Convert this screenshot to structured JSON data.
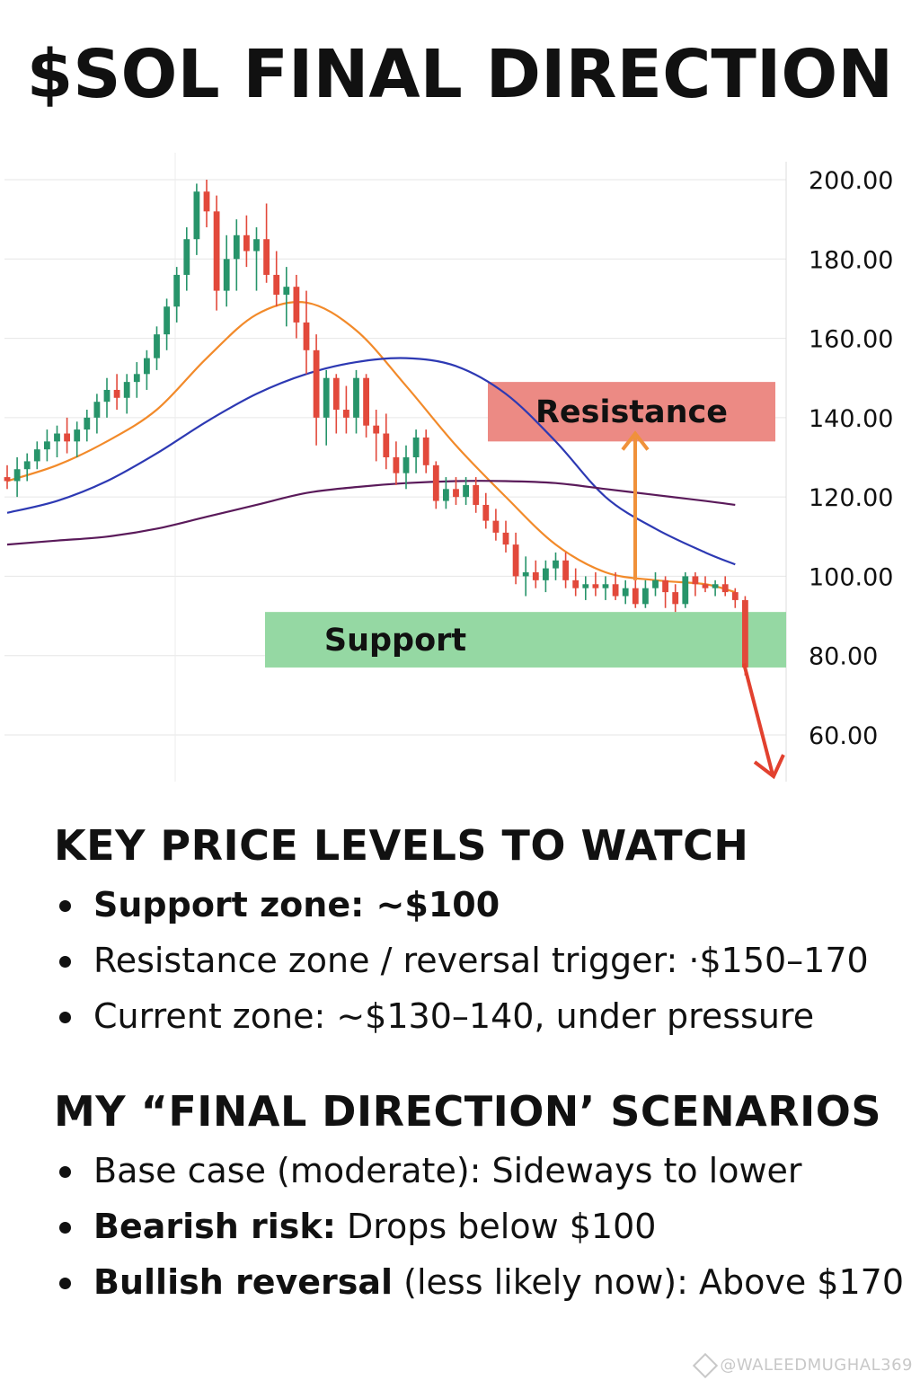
{
  "title": "$SOL FINAL DIRECTION",
  "chart_data": {
    "type": "candlestick",
    "yticks": [
      "200.00",
      "180.00",
      "160.00",
      "140.00",
      "120.00",
      "100.00",
      "80.00",
      "60.00"
    ],
    "ylim": [
      48,
      202
    ],
    "grid": true,
    "colors": {
      "up": "#27946a",
      "down": "#e2493b",
      "ma_fast": "#f28a2a",
      "ma_mid": "#2d39b3",
      "ma_slow": "#5a1a5a"
    },
    "candles": [
      [
        125,
        128,
        122,
        124
      ],
      [
        124,
        130,
        120,
        127
      ],
      [
        127,
        131,
        124,
        129
      ],
      [
        129,
        134,
        127,
        132
      ],
      [
        132,
        137,
        129,
        134
      ],
      [
        134,
        138,
        130,
        136
      ],
      [
        136,
        140,
        131,
        134
      ],
      [
        134,
        139,
        130,
        137
      ],
      [
        137,
        142,
        134,
        140
      ],
      [
        140,
        146,
        136,
        144
      ],
      [
        144,
        150,
        140,
        147
      ],
      [
        147,
        151,
        142,
        145
      ],
      [
        145,
        151,
        141,
        149
      ],
      [
        149,
        154,
        145,
        151
      ],
      [
        151,
        157,
        147,
        155
      ],
      [
        155,
        163,
        152,
        161
      ],
      [
        161,
        170,
        157,
        168
      ],
      [
        168,
        178,
        164,
        176
      ],
      [
        176,
        188,
        172,
        185
      ],
      [
        185,
        199,
        181,
        197
      ],
      [
        197,
        200,
        188,
        192
      ],
      [
        192,
        196,
        167,
        172
      ],
      [
        172,
        186,
        168,
        180
      ],
      [
        180,
        190,
        172,
        186
      ],
      [
        186,
        191,
        178,
        182
      ],
      [
        182,
        188,
        172,
        185
      ],
      [
        185,
        194,
        174,
        176
      ],
      [
        176,
        182,
        168,
        171
      ],
      [
        171,
        178,
        163,
        173
      ],
      [
        173,
        176,
        160,
        164
      ],
      [
        164,
        172,
        151,
        157
      ],
      [
        157,
        161,
        133,
        140
      ],
      [
        140,
        152,
        133,
        150
      ],
      [
        150,
        151,
        136,
        142
      ],
      [
        142,
        148,
        136,
        140
      ],
      [
        140,
        152,
        136,
        150
      ],
      [
        150,
        151,
        135,
        138
      ],
      [
        138,
        142,
        129,
        136
      ],
      [
        136,
        141,
        127,
        130
      ],
      [
        130,
        134,
        123,
        126
      ],
      [
        126,
        133,
        122,
        130
      ],
      [
        130,
        137,
        126,
        135
      ],
      [
        135,
        137,
        126,
        128
      ],
      [
        128,
        129,
        117,
        119
      ],
      [
        119,
        125,
        117,
        122
      ],
      [
        122,
        125,
        118,
        120
      ],
      [
        120,
        125,
        118,
        123
      ],
      [
        123,
        125,
        116,
        118
      ],
      [
        118,
        121,
        112,
        114
      ],
      [
        114,
        117,
        109,
        111
      ],
      [
        111,
        114,
        106,
        108
      ],
      [
        108,
        111,
        98,
        100
      ],
      [
        100,
        105,
        95,
        101
      ],
      [
        101,
        104,
        97,
        99
      ],
      [
        99,
        104,
        96,
        102
      ],
      [
        102,
        106,
        99,
        104
      ],
      [
        104,
        106,
        97,
        99
      ],
      [
        99,
        102,
        95,
        97
      ],
      [
        97,
        100,
        94,
        98
      ],
      [
        98,
        101,
        95,
        97
      ],
      [
        97,
        100,
        94,
        98
      ],
      [
        98,
        101,
        94,
        95
      ],
      [
        95,
        99,
        93,
        97
      ],
      [
        97,
        99,
        92,
        93
      ],
      [
        93,
        99,
        92,
        97
      ],
      [
        97,
        101,
        95,
        99
      ],
      [
        99,
        100,
        92,
        96
      ],
      [
        96,
        98,
        91,
        93
      ],
      [
        93,
        101,
        92,
        100
      ],
      [
        100,
        101,
        95,
        98
      ],
      [
        98,
        100,
        96,
        97
      ],
      [
        97,
        99,
        95,
        98
      ],
      [
        98,
        100,
        95,
        96
      ],
      [
        96,
        97,
        92,
        94
      ],
      [
        94,
        95,
        75,
        77
      ]
    ],
    "moving_averages": [
      {
        "name": "fast",
        "x": [
          0,
          5,
          10,
          15,
          20,
          25,
          30,
          35,
          40,
          45,
          50,
          55,
          60,
          65,
          70,
          73
        ],
        "y": [
          124,
          128,
          134,
          142,
          155,
          166,
          169,
          162,
          148,
          133,
          120,
          108,
          101,
          99,
          98,
          96
        ]
      },
      {
        "name": "mid",
        "x": [
          0,
          5,
          10,
          15,
          20,
          25,
          30,
          35,
          40,
          45,
          50,
          55,
          60,
          65,
          70,
          73
        ],
        "y": [
          116,
          119,
          124,
          131,
          139,
          146,
          151,
          154,
          155,
          153,
          146,
          134,
          120,
          112,
          106,
          103
        ]
      },
      {
        "name": "slow",
        "x": [
          0,
          5,
          10,
          15,
          20,
          25,
          30,
          35,
          40,
          45,
          50,
          55,
          60,
          65,
          70,
          73
        ],
        "y": [
          108,
          109,
          110,
          112,
          115,
          118,
          121,
          122.5,
          123.5,
          124,
          124,
          123.5,
          122,
          120.5,
          119,
          118
        ]
      }
    ],
    "zones": [
      {
        "label": "Resistance",
        "from": 134,
        "to": 149,
        "color": "#ec8a84"
      },
      {
        "label": "Support",
        "from": 77,
        "to": 91,
        "color": "#95d8a3"
      }
    ],
    "arrows": [
      {
        "direction": "up",
        "from": 99,
        "to": 136,
        "color": "#f0913a"
      },
      {
        "direction": "down",
        "from": 78,
        "to": 50,
        "color": "#e2412f"
      }
    ]
  },
  "levels_section": {
    "heading": "KEY PRICE LEVELS TO WATCH",
    "items": [
      {
        "label": "Support zone:",
        "value": " ~$100",
        "bold_value": true
      },
      {
        "label": "Resistance zone / reversal trigger:",
        "value": " ·$150–170",
        "bold_value": false
      },
      {
        "label": "Current zone:",
        "value": " ~$130–140, under pressure",
        "bold_value": false
      }
    ]
  },
  "scenarios_section": {
    "heading": "MY “FINAL DIRECTION’ SCENARIOS",
    "items": [
      {
        "label": "Base case (moderate):",
        "value": " Sideways to lower"
      },
      {
        "label": "Bearish risk:",
        "value": " Drops below $100"
      },
      {
        "label": "Bullish reversal",
        "value": " (less likely now): Above $170"
      }
    ]
  },
  "watermark": "@WALEEDMUGHAL369"
}
